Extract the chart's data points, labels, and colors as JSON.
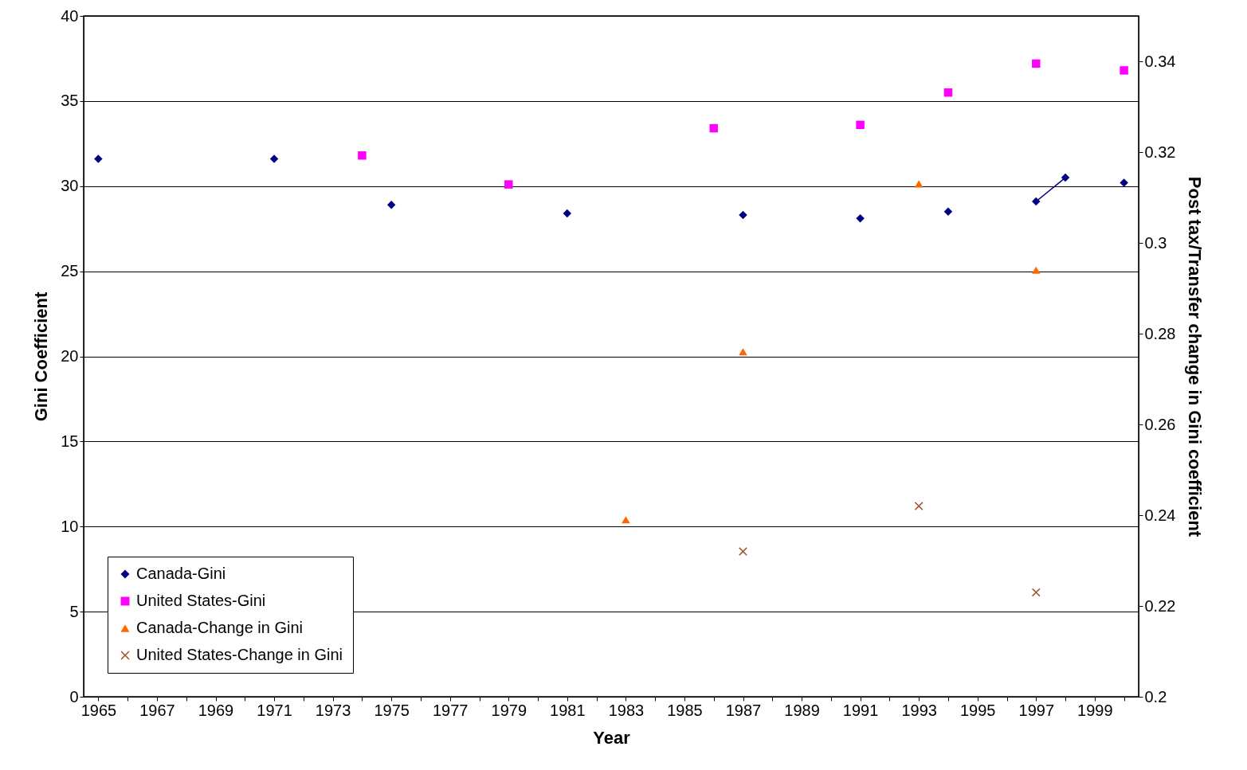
{
  "chart_data": {
    "type": "line",
    "xlabel": "Year",
    "ylabel": "Gini Coefficient",
    "y2label": "Post tax/Transfer change in Gini coefficient",
    "categories": [
      "1965",
      null,
      "1967",
      null,
      "1969",
      null,
      "1971",
      null,
      "1973",
      null,
      "1975",
      null,
      "1977",
      null,
      "1979",
      null,
      "1981",
      null,
      "1983",
      null,
      "1985",
      null,
      "1987",
      null,
      "1989",
      null,
      "1991",
      null,
      "1993",
      null,
      "1995",
      null,
      "1997",
      null,
      "1999",
      null
    ],
    "ylim": [
      0,
      40
    ],
    "yticks": [
      0,
      5,
      10,
      15,
      20,
      25,
      30,
      35,
      40
    ],
    "y2lim": [
      0.2,
      0.35
    ],
    "y2ticks": [
      0.2,
      0.22,
      0.24,
      0.26,
      0.28,
      0.3,
      0.32,
      0.34
    ],
    "grid": "y",
    "legend": "bottom left",
    "series": [
      {
        "name": "Canada-Gini",
        "color": "#000080",
        "marker": "diamond",
        "values": [
          31.6,
          null,
          null,
          null,
          null,
          null,
          31.6,
          null,
          null,
          null,
          28.9,
          null,
          null,
          null,
          null,
          null,
          28.4,
          null,
          null,
          null,
          null,
          null,
          28.3,
          null,
          null,
          null,
          28.1,
          null,
          null,
          28.5,
          null,
          null,
          29.1,
          30.5,
          null,
          30.2
        ]
      },
      {
        "name": "United States-Gini",
        "type": "scatter",
        "color": "#ff00ff",
        "marker": "square",
        "values": [
          null,
          null,
          null,
          null,
          null,
          null,
          null,
          null,
          null,
          31.8,
          null,
          null,
          null,
          null,
          30.1,
          null,
          null,
          null,
          null,
          null,
          null,
          33.4,
          null,
          null,
          null,
          null,
          33.6,
          null,
          null,
          35.5,
          null,
          null,
          37.2,
          null,
          null,
          36.8
        ]
      },
      {
        "name": "Canada-Change in Gini",
        "type": "scatter",
        "color": "#ff6600",
        "marker": "triangle",
        "axis": "y2",
        "values": [
          null,
          null,
          null,
          null,
          null,
          null,
          null,
          null,
          null,
          null,
          null,
          null,
          null,
          null,
          null,
          null,
          null,
          null,
          0.239,
          null,
          null,
          null,
          0.276,
          null,
          null,
          null,
          null,
          null,
          0.313,
          null,
          null,
          null,
          0.294,
          null,
          null,
          null
        ]
      },
      {
        "name": "United States-Change in Gini",
        "type": "scatter",
        "color": "#a0522d",
        "marker": "cross",
        "axis": "y2",
        "values": [
          null,
          null,
          null,
          null,
          null,
          null,
          null,
          null,
          null,
          null,
          null,
          null,
          null,
          null,
          null,
          null,
          null,
          null,
          null,
          null,
          null,
          null,
          0.232,
          null,
          null,
          null,
          null,
          null,
          0.242,
          null,
          null,
          null,
          0.223,
          null,
          null,
          null
        ]
      }
    ]
  }
}
